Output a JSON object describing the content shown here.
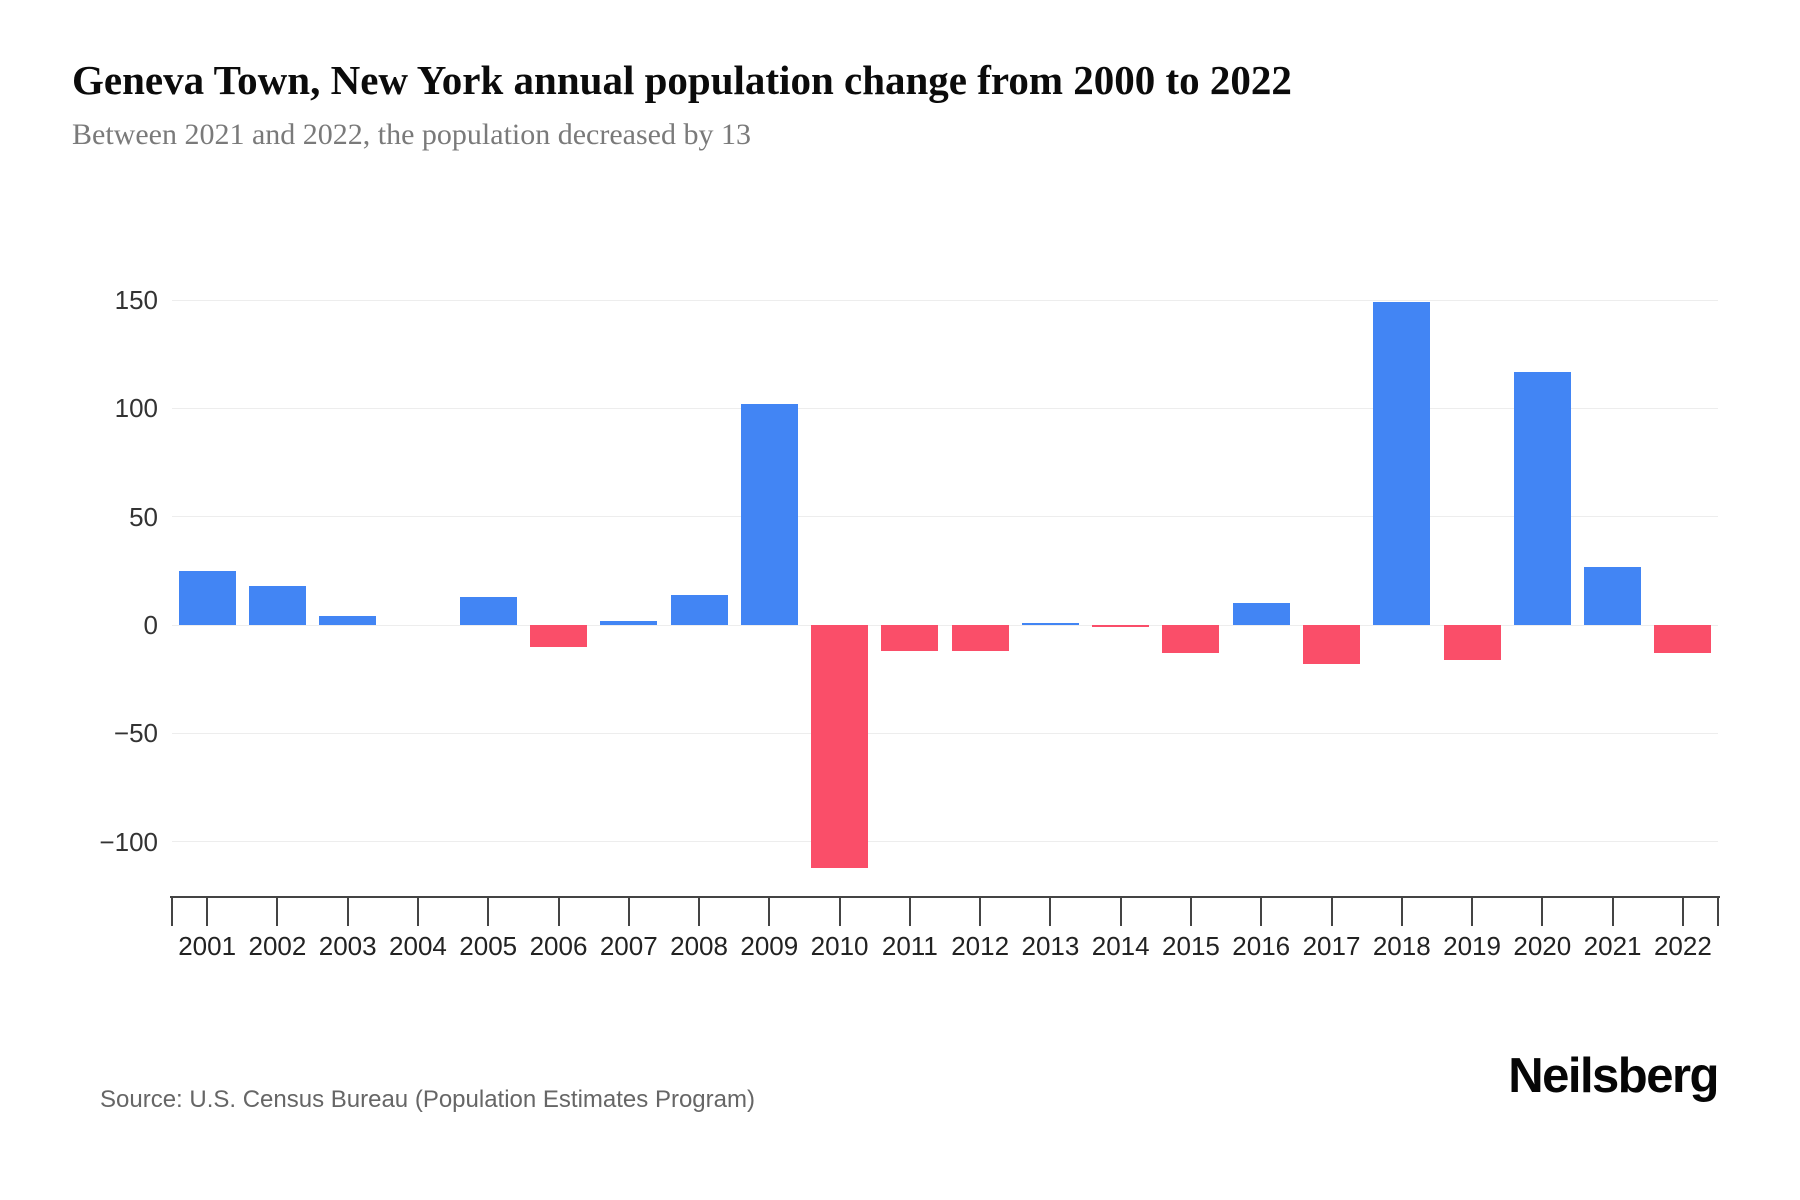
{
  "header": {
    "title": "Geneva Town, New York annual population change from 2000 to 2022",
    "subtitle": "Between 2021 and 2022, the population decreased by 13"
  },
  "footer": {
    "source": "Source: U.S. Census Bureau (Population Estimates Program)",
    "logo": "Neilsberg"
  },
  "chart_data": {
    "type": "bar",
    "title": "Geneva Town, New York annual population change from 2000 to 2022",
    "xlabel": "",
    "ylabel": "",
    "categories": [
      "2001",
      "2002",
      "2003",
      "2004",
      "2005",
      "2006",
      "2007",
      "2008",
      "2009",
      "2010",
      "2011",
      "2012",
      "2013",
      "2014",
      "2015",
      "2016",
      "2017",
      "2018",
      "2019",
      "2020",
      "2021",
      "2022"
    ],
    "values": [
      25,
      18,
      4,
      0,
      13,
      -10,
      2,
      14,
      102,
      -112,
      -12,
      -12,
      1,
      -1,
      -13,
      10,
      -18,
      149,
      -16,
      117,
      27,
      -13
    ],
    "ylim": [
      -130,
      165
    ],
    "yticks": [
      150,
      100,
      50,
      0,
      -50,
      -100
    ],
    "grid": true,
    "legend_position": "none",
    "positive_color": "#4285F4",
    "negative_color": "#FA4E69",
    "gridline_color": "#ededed",
    "axis_color": "#444444"
  }
}
